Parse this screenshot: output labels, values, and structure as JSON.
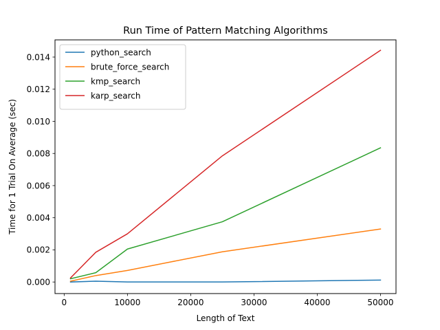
{
  "chart_data": {
    "type": "line",
    "title": "Run Time of Pattern Matching Algorithms",
    "xlabel": "Length of Text",
    "ylabel": "Time for 1 Trial On Average (sec)",
    "xlim": [
      -1450,
      52450
    ],
    "ylim": [
      -0.00072,
      0.01507
    ],
    "xticks": [
      0,
      10000,
      20000,
      30000,
      40000,
      50000
    ],
    "xtick_labels": [
      "0",
      "10000",
      "20000",
      "30000",
      "40000",
      "50000"
    ],
    "yticks": [
      0.0,
      0.002,
      0.004,
      0.006,
      0.008,
      0.01,
      0.012,
      0.014
    ],
    "ytick_labels": [
      "0.000",
      "0.002",
      "0.004",
      "0.006",
      "0.008",
      "0.010",
      "0.012",
      "0.014"
    ],
    "grid": false,
    "legend_position": "top-left",
    "x": [
      1000,
      5000,
      10000,
      25000,
      50000
    ],
    "series": [
      {
        "name": "python_search",
        "color": "#1f77b4",
        "values": [
          0.0,
          5e-05,
          0.0,
          0.0,
          0.00012
        ]
      },
      {
        "name": "brute_force_search",
        "color": "#ff7f0e",
        "values": [
          5e-05,
          0.0004,
          0.00072,
          0.00188,
          0.0033
        ]
      },
      {
        "name": "kmp_search",
        "color": "#2ca02c",
        "values": [
          0.0002,
          0.00058,
          0.00205,
          0.00375,
          0.00835
        ]
      },
      {
        "name": "karp_search",
        "color": "#d62728",
        "values": [
          0.00025,
          0.00185,
          0.003,
          0.00785,
          0.01442
        ]
      }
    ]
  }
}
